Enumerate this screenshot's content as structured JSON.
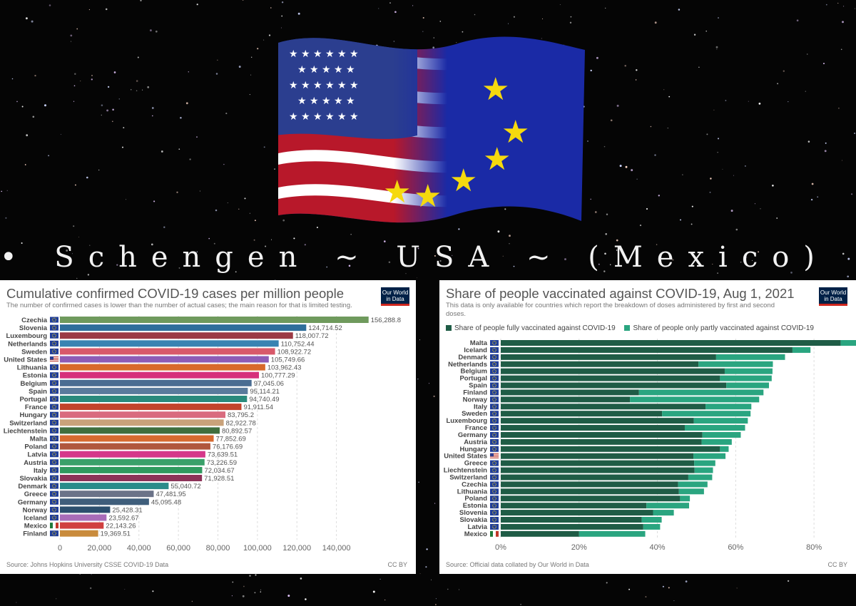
{
  "banner": {
    "text": "• Schengen ~ USA ~ (Mexico) •"
  },
  "colors": {
    "fully": "#1f5c46",
    "partly": "#2aa580",
    "grid": "#dddddd"
  },
  "chart_data": [
    {
      "type": "bar",
      "orientation": "horizontal",
      "title": "Cumulative confirmed COVID-19 cases per million people",
      "subtitle": "The number of confirmed cases is lower than the number of actual cases; the main reason for that is limited testing.",
      "logo": [
        "Our World",
        "in Data"
      ],
      "source": "Source: Johns Hopkins University CSSE COVID-19 Data",
      "license": "CC BY",
      "xlim": [
        0,
        160000
      ],
      "xticks": [
        0,
        20000,
        40000,
        60000,
        80000,
        100000,
        120000,
        140000
      ],
      "xtick_labels": [
        "0",
        "20,000",
        "40,000",
        "60,000",
        "80,000",
        "100,000",
        "120,000",
        "140,000"
      ],
      "grid": true,
      "bars": [
        {
          "label": "Czechia",
          "value": 156288.8,
          "display": "156,288.8",
          "color": "#6f9a5d",
          "flag": "eu"
        },
        {
          "label": "Slovenia",
          "value": 124714.52,
          "display": "124,714.52",
          "color": "#2f6f9b",
          "flag": "eu"
        },
        {
          "label": "Luxembourg",
          "value": 118007.72,
          "display": "118,007.72",
          "color": "#9b3a45",
          "flag": "eu"
        },
        {
          "label": "Netherlands",
          "value": 110752.44,
          "display": "110,752.44",
          "color": "#3983b2",
          "flag": "eu"
        },
        {
          "label": "Sweden",
          "value": 108922.72,
          "display": "108,922.72",
          "color": "#d8596a",
          "flag": "eu"
        },
        {
          "label": "United States",
          "value": 105749.66,
          "display": "105,749.66",
          "color": "#8e5bb5",
          "flag": "us"
        },
        {
          "label": "Lithuania",
          "value": 103962.43,
          "display": "103,962.43",
          "color": "#d8692a",
          "flag": "eu"
        },
        {
          "label": "Estonia",
          "value": 100777.29,
          "display": "100,777.29",
          "color": "#d6307b",
          "flag": "eu"
        },
        {
          "label": "Belgium",
          "value": 97045.06,
          "display": "97,045.06",
          "color": "#4a6d92",
          "flag": "eu"
        },
        {
          "label": "Spain",
          "value": 95114.21,
          "display": "95,114.21",
          "color": "#5a7b9c",
          "flag": "eu"
        },
        {
          "label": "Portugal",
          "value": 94740.49,
          "display": "94,740.49",
          "color": "#2a8a7c",
          "flag": "eu"
        },
        {
          "label": "France",
          "value": 91911.54,
          "display": "91,911.54",
          "color": "#c2442b",
          "flag": "eu"
        },
        {
          "label": "Hungary",
          "value": 83795.2,
          "display": "83,795.2",
          "color": "#d96b7e",
          "flag": "eu"
        },
        {
          "label": "Switzerland",
          "value": 82922.78,
          "display": "82,922.78",
          "color": "#c9a27a",
          "flag": "eu"
        },
        {
          "label": "Liechtenstein",
          "value": 80892.57,
          "display": "80,892.57",
          "color": "#3f6e3d",
          "flag": "eu"
        },
        {
          "label": "Malta",
          "value": 77852.69,
          "display": "77,852.69",
          "color": "#d66a2f",
          "flag": "eu"
        },
        {
          "label": "Poland",
          "value": 76176.69,
          "display": "76,176.69",
          "color": "#b0573d",
          "flag": "eu"
        },
        {
          "label": "Latvia",
          "value": 73639.51,
          "display": "73,639.51",
          "color": "#d5388a",
          "flag": "eu"
        },
        {
          "label": "Austria",
          "value": 73226.59,
          "display": "73,226.59",
          "color": "#3aa06a",
          "flag": "eu"
        },
        {
          "label": "Italy",
          "value": 72034.67,
          "display": "72,034.67",
          "color": "#2f9a5f",
          "flag": "eu"
        },
        {
          "label": "Slovakia",
          "value": 71928.51,
          "display": "71,928.51",
          "color": "#8c3358",
          "flag": "eu"
        },
        {
          "label": "Denmark",
          "value": 55040.72,
          "display": "55,040.72",
          "color": "#2a8c8a",
          "flag": "eu"
        },
        {
          "label": "Greece",
          "value": 47481.95,
          "display": "47,481.95",
          "color": "#6b7388",
          "flag": "eu"
        },
        {
          "label": "Germany",
          "value": 45095.48,
          "display": "45,095.48",
          "color": "#3f5e7b",
          "flag": "eu"
        },
        {
          "label": "Norway",
          "value": 25428.31,
          "display": "25,428.31",
          "color": "#2c4f6e",
          "flag": "eu"
        },
        {
          "label": "Iceland",
          "value": 23592.67,
          "display": "23,592.67",
          "color": "#a86cb8",
          "flag": "eu"
        },
        {
          "label": "Mexico",
          "value": 22143.26,
          "display": "22,143.26",
          "color": "#d04040",
          "flag": "mx"
        },
        {
          "label": "Finland",
          "value": 19369.51,
          "display": "19,369.51",
          "color": "#c98b3c",
          "flag": "eu"
        }
      ]
    },
    {
      "type": "bar",
      "orientation": "horizontal",
      "stacked": true,
      "title": "Share of people vaccinated against COVID-19, Aug 1, 2021",
      "subtitle_lines": [
        "This data is only available for countries which report the breakdown of doses administered by first and second",
        "doses."
      ],
      "logo": [
        "Our World",
        "in Data"
      ],
      "source": "Source: Official data collated by Our World in Data",
      "license": "CC BY",
      "xlim": [
        0,
        90
      ],
      "xticks": [
        0,
        20,
        40,
        60,
        80
      ],
      "xtick_labels": [
        "0%",
        "20%",
        "40%",
        "60%",
        "80%"
      ],
      "grid": true,
      "series": [
        {
          "name": "Share of people fully vaccinated against COVID-19",
          "color_key": "fully"
        },
        {
          "name": "Share of people only partly vaccinated against COVID-19",
          "color_key": "partly"
        }
      ],
      "bars": [
        {
          "label": "Malta",
          "fully": 86.8,
          "partly": 4.0,
          "flag": "eu"
        },
        {
          "label": "Iceland",
          "fully": 74.5,
          "partly": 4.6,
          "flag": "eu"
        },
        {
          "label": "Denmark",
          "fully": 55.0,
          "partly": 17.6,
          "flag": "eu"
        },
        {
          "label": "Netherlands",
          "fully": 50.5,
          "partly": 19.0,
          "flag": "eu"
        },
        {
          "label": "Belgium",
          "fully": 57.2,
          "partly": 12.2,
          "flag": "eu"
        },
        {
          "label": "Portugal",
          "fully": 56.0,
          "partly": 13.2,
          "flag": "eu"
        },
        {
          "label": "Spain",
          "fully": 57.6,
          "partly": 10.9,
          "flag": "eu"
        },
        {
          "label": "Finland",
          "fully": 35.3,
          "partly": 31.8,
          "flag": "eu"
        },
        {
          "label": "Norway",
          "fully": 33.0,
          "partly": 33.0,
          "flag": "eu"
        },
        {
          "label": "Italy",
          "fully": 52.3,
          "partly": 11.7,
          "flag": "eu"
        },
        {
          "label": "Sweden",
          "fully": 41.2,
          "partly": 22.6,
          "flag": "eu"
        },
        {
          "label": "Luxembourg",
          "fully": 49.3,
          "partly": 13.8,
          "flag": "eu"
        },
        {
          "label": "France",
          "fully": 47.0,
          "partly": 15.4,
          "flag": "eu"
        },
        {
          "label": "Germany",
          "fully": 51.5,
          "partly": 9.8,
          "flag": "eu"
        },
        {
          "label": "Austria",
          "fully": 51.3,
          "partly": 7.7,
          "flag": "eu"
        },
        {
          "label": "Hungary",
          "fully": 56.0,
          "partly": 2.2,
          "flag": "eu"
        },
        {
          "label": "United States",
          "fully": 49.2,
          "partly": 8.2,
          "flag": "us"
        },
        {
          "label": "Greece",
          "fully": 49.4,
          "partly": 5.4,
          "flag": "eu"
        },
        {
          "label": "Liechtenstein",
          "fully": 49.5,
          "partly": 4.7,
          "flag": "eu"
        },
        {
          "label": "Switzerland",
          "fully": 47.9,
          "partly": 6.1,
          "flag": "eu"
        },
        {
          "label": "Czechia",
          "fully": 45.3,
          "partly": 7.5,
          "flag": "eu"
        },
        {
          "label": "Lithuania",
          "fully": 45.5,
          "partly": 6.4,
          "flag": "eu"
        },
        {
          "label": "Poland",
          "fully": 45.8,
          "partly": 2.5,
          "flag": "eu"
        },
        {
          "label": "Estonia",
          "fully": 37.2,
          "partly": 10.9,
          "flag": "eu"
        },
        {
          "label": "Slovenia",
          "fully": 38.9,
          "partly": 5.3,
          "flag": "eu"
        },
        {
          "label": "Slovakia",
          "fully": 36.0,
          "partly": 5.1,
          "flag": "eu"
        },
        {
          "label": "Latvia",
          "fully": 36.4,
          "partly": 4.3,
          "flag": "eu"
        },
        {
          "label": "Mexico",
          "fully": 20.0,
          "partly": 16.9,
          "flag": "mx"
        }
      ]
    }
  ]
}
